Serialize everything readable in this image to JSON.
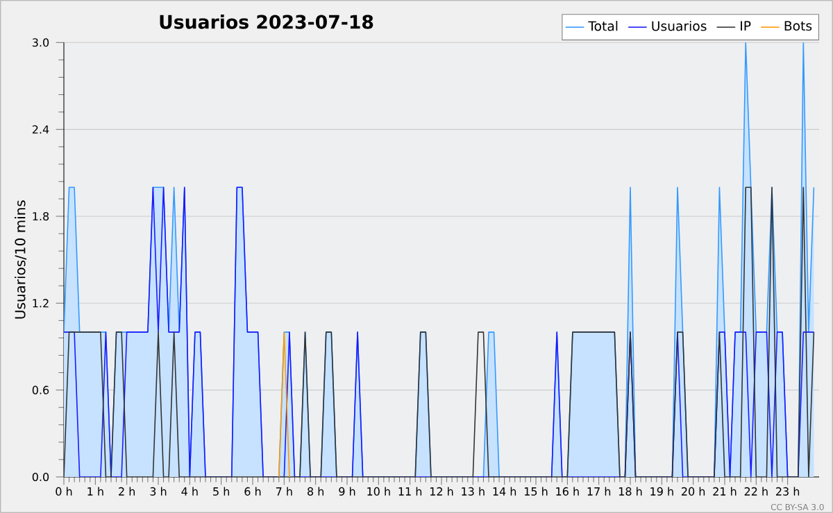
{
  "chart_data": {
    "type": "line",
    "title": "Usuarios  2023-07-18",
    "ylabel": "Usuarios/10 mins",
    "annotations": [
      "CC BY-SA 3.0"
    ],
    "x": [
      0,
      0.167,
      0.333,
      0.5,
      0.667,
      0.833,
      1,
      1.167,
      1.333,
      1.5,
      1.667,
      1.833,
      2,
      2.167,
      2.333,
      2.5,
      2.667,
      2.833,
      3,
      3.167,
      3.333,
      3.5,
      3.667,
      3.833,
      4,
      4.167,
      4.333,
      4.5,
      4.667,
      4.833,
      5,
      5.167,
      5.333,
      5.5,
      5.667,
      5.833,
      6,
      6.167,
      6.333,
      6.5,
      6.667,
      6.833,
      7,
      7.167,
      7.333,
      7.5,
      7.667,
      7.833,
      8,
      8.167,
      8.333,
      8.5,
      8.667,
      8.833,
      9,
      9.167,
      9.333,
      9.5,
      9.667,
      9.833,
      10,
      10.167,
      10.333,
      10.5,
      10.667,
      10.833,
      11,
      11.167,
      11.333,
      11.5,
      11.667,
      11.833,
      12,
      12.167,
      12.333,
      12.5,
      12.667,
      12.833,
      13,
      13.167,
      13.333,
      13.5,
      13.667,
      13.833,
      14,
      14.167,
      14.333,
      14.5,
      14.667,
      14.833,
      15,
      15.167,
      15.333,
      15.5,
      15.667,
      15.833,
      16,
      16.167,
      16.333,
      16.5,
      16.667,
      16.833,
      17,
      17.167,
      17.333,
      17.5,
      17.667,
      17.833,
      18,
      18.167,
      18.333,
      18.5,
      18.667,
      18.833,
      19,
      19.167,
      19.333,
      19.5,
      19.667,
      19.833,
      20,
      20.167,
      20.333,
      20.5,
      20.667,
      20.833,
      21,
      21.167,
      21.333,
      21.5,
      21.667,
      21.833,
      22,
      22.167,
      22.333,
      22.5,
      22.667,
      22.833,
      23,
      23.167,
      23.333,
      23.5,
      23.667,
      23.833
    ],
    "series": [
      {
        "name": "Total",
        "type": "area",
        "color": "#3399ff",
        "values": [
          1,
          2,
          2,
          1,
          1,
          1,
          1,
          1,
          1,
          0,
          1,
          1,
          1,
          1,
          1,
          1,
          1,
          2,
          2,
          2,
          1,
          2,
          1,
          2,
          0,
          1,
          1,
          0,
          0,
          0,
          0,
          0,
          0,
          2,
          2,
          1,
          1,
          1,
          0,
          0,
          0,
          0,
          1,
          1,
          0,
          0,
          1,
          0,
          0,
          0,
          1,
          1,
          0,
          0,
          0,
          0,
          1,
          0,
          0,
          0,
          0,
          0,
          0,
          0,
          0,
          0,
          0,
          0,
          1,
          1,
          0,
          0,
          0,
          0,
          0,
          0,
          0,
          0,
          0,
          0,
          0,
          1,
          1,
          0,
          0,
          0,
          0,
          0,
          0,
          0,
          0,
          0,
          0,
          0,
          1,
          0,
          0,
          1,
          1,
          1,
          1,
          1,
          1,
          1,
          1,
          1,
          0,
          0,
          2,
          0,
          0,
          0,
          0,
          0,
          0,
          0,
          0,
          2,
          1,
          0,
          0,
          0,
          0,
          0,
          0,
          2,
          1,
          0,
          1,
          1,
          3,
          2,
          1,
          1,
          1,
          2,
          1,
          1,
          0,
          0,
          0,
          3,
          1,
          2
        ]
      },
      {
        "name": "Usuarios",
        "color": "#1a1aff",
        "values": [
          1,
          1,
          1,
          0,
          0,
          0,
          0,
          0,
          1,
          0,
          0,
          0,
          1,
          1,
          1,
          1,
          1,
          2,
          1,
          2,
          1,
          1,
          1,
          2,
          0,
          1,
          1,
          0,
          0,
          0,
          0,
          0,
          0,
          2,
          2,
          1,
          1,
          1,
          0,
          0,
          0,
          0,
          0,
          1,
          0,
          0,
          0,
          0,
          0,
          0,
          0,
          0,
          0,
          0,
          0,
          0,
          1,
          0,
          0,
          0,
          0,
          0,
          0,
          0,
          0,
          0,
          0,
          0,
          0,
          0,
          0,
          0,
          0,
          0,
          0,
          0,
          0,
          0,
          0,
          0,
          0,
          0,
          0,
          0,
          0,
          0,
          0,
          0,
          0,
          0,
          0,
          0,
          0,
          0,
          1,
          0,
          0,
          0,
          0,
          0,
          0,
          0,
          0,
          0,
          0,
          0,
          0,
          0,
          1,
          0,
          0,
          0,
          0,
          0,
          0,
          0,
          0,
          1,
          0,
          0,
          0,
          0,
          0,
          0,
          0,
          1,
          1,
          0,
          1,
          1,
          1,
          0,
          1,
          1,
          1,
          0,
          1,
          1,
          0,
          0,
          0,
          1,
          1,
          1
        ]
      },
      {
        "name": "IP",
        "color": "#333333",
        "values": [
          0,
          1,
          1,
          1,
          1,
          1,
          1,
          1,
          0,
          0,
          1,
          1,
          0,
          0,
          0,
          0,
          0,
          0,
          1,
          0,
          0,
          1,
          0,
          0,
          0,
          0,
          0,
          0,
          0,
          0,
          0,
          0,
          0,
          0,
          0,
          0,
          0,
          0,
          0,
          0,
          0,
          0,
          0,
          0,
          0,
          0,
          1,
          0,
          0,
          0,
          1,
          1,
          0,
          0,
          0,
          0,
          0,
          0,
          0,
          0,
          0,
          0,
          0,
          0,
          0,
          0,
          0,
          0,
          1,
          1,
          0,
          0,
          0,
          0,
          0,
          0,
          0,
          0,
          0,
          1,
          1,
          0,
          0,
          0,
          0,
          0,
          0,
          0,
          0,
          0,
          0,
          0,
          0,
          0,
          0,
          0,
          0,
          1,
          1,
          1,
          1,
          1,
          1,
          1,
          1,
          1,
          0,
          0,
          1,
          0,
          0,
          0,
          0,
          0,
          0,
          0,
          0,
          1,
          1,
          0,
          0,
          0,
          0,
          0,
          0,
          1,
          0,
          0,
          0,
          0,
          2,
          2,
          0,
          0,
          0,
          2,
          0,
          0,
          0,
          0,
          0,
          2,
          0,
          1
        ]
      },
      {
        "name": "Bots",
        "color": "#ff9900",
        "values": [
          null,
          null,
          null,
          null,
          null,
          null,
          null,
          null,
          null,
          null,
          null,
          null,
          null,
          null,
          null,
          null,
          null,
          null,
          null,
          null,
          null,
          null,
          null,
          null,
          null,
          null,
          null,
          null,
          null,
          null,
          null,
          null,
          null,
          null,
          null,
          null,
          null,
          null,
          null,
          null,
          null,
          0,
          1,
          0,
          null,
          null,
          null,
          null,
          null,
          null,
          null,
          null,
          null,
          null,
          null,
          null,
          null,
          null,
          null,
          null,
          null,
          null,
          null,
          null,
          null,
          null,
          null,
          null,
          null,
          null,
          null,
          null,
          null,
          null,
          null,
          null,
          null,
          null,
          null,
          null,
          null,
          null,
          null,
          null,
          null,
          null,
          null,
          null,
          null,
          null,
          null,
          null,
          null,
          null,
          null,
          null,
          null,
          null,
          null,
          null,
          null,
          null,
          null,
          null,
          null,
          null,
          null,
          null,
          null,
          null,
          null,
          null,
          null,
          null,
          null,
          null,
          null,
          null,
          null,
          null,
          null,
          null,
          null,
          null,
          null,
          null,
          null,
          null,
          null,
          null,
          null,
          null,
          null,
          null,
          null,
          null,
          null,
          null,
          null,
          null,
          null,
          null,
          null,
          null
        ]
      }
    ],
    "xlim": [
      0,
      24
    ],
    "xticks": [
      {
        "value": 0,
        "label": "0 h"
      },
      {
        "value": 1,
        "label": "1 h"
      },
      {
        "value": 2,
        "label": "2 h"
      },
      {
        "value": 3,
        "label": "3 h"
      },
      {
        "value": 4,
        "label": "4 h"
      },
      {
        "value": 5,
        "label": "5 h"
      },
      {
        "value": 6,
        "label": "6 h"
      },
      {
        "value": 7,
        "label": "7 h"
      },
      {
        "value": 8,
        "label": "8 h"
      },
      {
        "value": 9,
        "label": "9 h"
      },
      {
        "value": 10,
        "label": "10 h"
      },
      {
        "value": 11,
        "label": "11 h"
      },
      {
        "value": 12,
        "label": "12 h"
      },
      {
        "value": 13,
        "label": "13 h"
      },
      {
        "value": 14,
        "label": "14 h"
      },
      {
        "value": 15,
        "label": "15 h"
      },
      {
        "value": 16,
        "label": "16 h"
      },
      {
        "value": 17,
        "label": "17 h"
      },
      {
        "value": 18,
        "label": "18 h"
      },
      {
        "value": 19,
        "label": "19 h"
      },
      {
        "value": 20,
        "label": "20 h"
      },
      {
        "value": 21,
        "label": "21 h"
      },
      {
        "value": 22,
        "label": "22 h"
      },
      {
        "value": 23,
        "label": "23 h"
      }
    ],
    "ylim": [
      0,
      3
    ],
    "yticks": [
      {
        "value": 0,
        "label": "0.0"
      },
      {
        "value": 0.6,
        "label": "0.6"
      },
      {
        "value": 1.2,
        "label": "1.2"
      },
      {
        "value": 1.8,
        "label": "1.8"
      },
      {
        "value": 2.4,
        "label": "2.4"
      },
      {
        "value": 3,
        "label": "3.0"
      }
    ],
    "grid": "y",
    "legend": "top right",
    "marker": "none",
    "line_style": "solid"
  }
}
